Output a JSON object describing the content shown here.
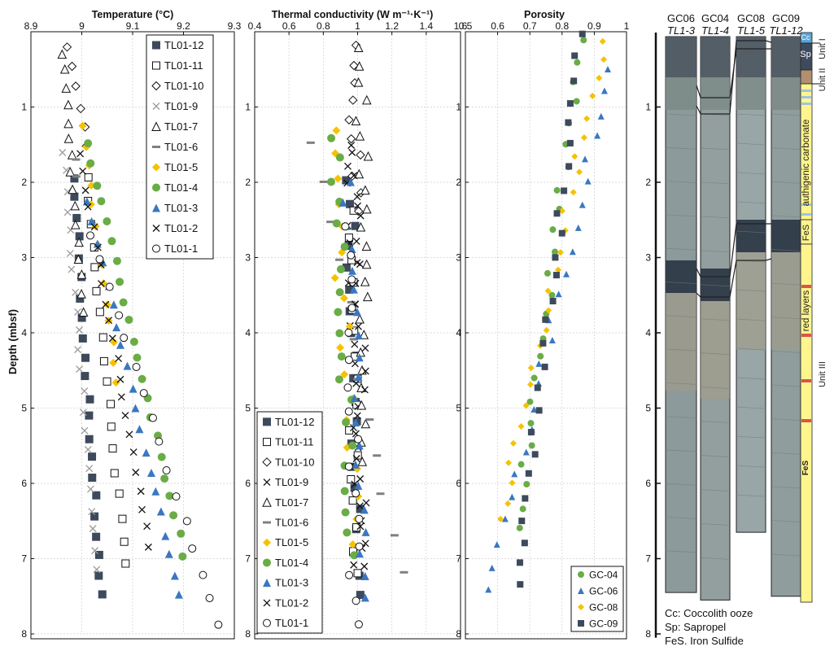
{
  "y_axis": {
    "label": "Depth (mbsf)",
    "range": [
      0,
      8
    ],
    "ticks": [
      1,
      2,
      3,
      4,
      5,
      6,
      7,
      8
    ]
  },
  "panels": [
    {
      "id": "temperature",
      "title": "Temperature (°C)",
      "xlim": [
        8.9,
        9.3
      ],
      "ticks": [
        8.9,
        9,
        9.1,
        9.2,
        9.3
      ],
      "legend_position": "top-right",
      "series": [
        {
          "name": "TL01-12",
          "marker": "square-filled",
          "color": "#3d4a5c",
          "x0": 8.985,
          "dx": 0.052,
          "d0": 1.95,
          "dd": 5.55,
          "n": 22
        },
        {
          "name": "TL01-11",
          "marker": "square-open",
          "color": "#111111",
          "x0": 9.01,
          "dx": 0.075,
          "d0": 1.95,
          "dd": 5.1,
          "n": 18
        },
        {
          "name": "TL01-10",
          "marker": "diamond-open",
          "color": "#111111",
          "x0": 8.975,
          "dx": 0.035,
          "d0": 0.2,
          "dd": 1.35,
          "n": 6
        },
        {
          "name": "TL01-9",
          "marker": "x-gray",
          "color": "#9a9a9a",
          "x0": 8.9625,
          "dx": 0.07,
          "d0": 1.6,
          "dd": 5.55,
          "n": 22
        },
        {
          "name": "TL01-7",
          "marker": "triangle-open",
          "color": "#111111",
          "x0": 8.962,
          "dx": 0.04,
          "d0": 0.3,
          "dd": 3.4,
          "n": 16
        },
        {
          "name": "TL01-6",
          "marker": "dash-gray",
          "color": "#808080",
          "x0": 8.985,
          "dx": 0.005,
          "d0": 1.7,
          "dd": 0.2,
          "n": 2
        },
        {
          "name": "TL01-5",
          "marker": "diamond-filled",
          "color": "#f5c200",
          "x0": 9.0,
          "dx": 0.07,
          "d0": 1.25,
          "dd": 3.4,
          "n": 14
        },
        {
          "name": "TL01-4",
          "marker": "circle-filled",
          "color": "#6aac46",
          "x0": 9.012,
          "dx": 0.19,
          "d0": 1.5,
          "dd": 5.45,
          "n": 22
        },
        {
          "name": "TL01-3",
          "marker": "triangle-filled",
          "color": "#3a77c0",
          "x0": 9.012,
          "dx": 0.18,
          "d0": 2.25,
          "dd": 5.25,
          "n": 20
        },
        {
          "name": "TL01-2",
          "marker": "x-black",
          "color": "#111111",
          "x0": 8.995,
          "dx": 0.14,
          "d0": 1.6,
          "dd": 5.25,
          "n": 22
        },
        {
          "name": "TL01-1",
          "marker": "circle-open",
          "color": "#111111",
          "x0": 9.02,
          "dx": 0.25,
          "d0": 2.7,
          "dd": 5.2,
          "n": 16
        }
      ]
    },
    {
      "id": "conductivity",
      "title": "Thermal conductivity (W m⁻¹·K⁻¹)",
      "xlim": [
        0.4,
        1.6
      ],
      "ticks": [
        0.4,
        0.6,
        0.8,
        1,
        1.2,
        1.4,
        1.6
      ],
      "legend_position": "bottom-left",
      "series": [
        {
          "name": "TL01-12",
          "marker": "square-filled",
          "color": "#3d4a5c",
          "x0": 0.95,
          "dx": 0.05,
          "d0": 2.0,
          "dd": 5.5,
          "n": 20
        },
        {
          "name": "TL01-11",
          "marker": "square-open",
          "color": "#111111",
          "x0": 0.98,
          "dx": 0.0,
          "d0": 2.4,
          "dd": 4.8,
          "n": 16
        },
        {
          "name": "TL01-10",
          "marker": "diamond-open",
          "color": "#111111",
          "x0": 0.97,
          "dx": 0.02,
          "d0": 0.2,
          "dd": 2.2,
          "n": 10
        },
        {
          "name": "TL01-9",
          "marker": "x-black",
          "color": "#111111",
          "x0": 0.97,
          "dx": 0.03,
          "d0": 1.5,
          "dd": 5.6,
          "n": 22
        },
        {
          "name": "TL01-7",
          "marker": "triangle-open",
          "color": "#111111",
          "x0": 1.02,
          "dx": 0.03,
          "d0": 0.2,
          "dd": 5.5,
          "n": 24
        },
        {
          "name": "TL01-6",
          "marker": "dash-gray",
          "color": "#808080",
          "x0": 0.75,
          "dx": 0.5,
          "d0": 1.5,
          "dd": 5.7,
          "n": 12
        },
        {
          "name": "TL01-5",
          "marker": "diamond-filled",
          "color": "#f5c200",
          "x0": 0.85,
          "dx": 0.15,
          "d0": 1.3,
          "dd": 5.5,
          "n": 18
        },
        {
          "name": "TL01-4",
          "marker": "circle-filled",
          "color": "#6aac46",
          "x0": 0.87,
          "dx": 0.1,
          "d0": 1.4,
          "dd": 5.55,
          "n": 20
        },
        {
          "name": "TL01-3",
          "marker": "triangle-filled",
          "color": "#3a77c0",
          "x0": 0.93,
          "dx": 0.12,
          "d0": 2.0,
          "dd": 5.5,
          "n": 20
        },
        {
          "name": "TL01-2",
          "marker": "x-black",
          "color": "#111111",
          "x0": 0.99,
          "dx": 0.05,
          "d0": 1.6,
          "dd": 5.5,
          "n": 20
        },
        {
          "name": "TL01-1",
          "marker": "circle-open",
          "color": "#111111",
          "x0": 0.96,
          "dx": 0.02,
          "d0": 2.6,
          "dd": 5.3,
          "n": 16
        }
      ]
    },
    {
      "id": "porosity",
      "title": "Porosity",
      "xlim": [
        0.5,
        1.0
      ],
      "ticks": [
        0.5,
        0.6,
        0.7,
        0.8,
        0.9,
        1
      ],
      "legend_position": "bottom-right",
      "series": [
        {
          "name": "GC-04",
          "marker": "circle-filled",
          "color": "#6aac46",
          "x0": 0.86,
          "dx": -0.2,
          "d0": 0.1,
          "dd": 6.5,
          "n": 24
        },
        {
          "name": "GC-06",
          "marker": "triangle-filled",
          "color": "#3a77c0",
          "x0": 0.95,
          "dx": -0.37,
          "d0": 0.5,
          "dd": 6.9,
          "n": 24
        },
        {
          "name": "GC-08",
          "marker": "diamond-filled",
          "color": "#f5c200",
          "x0": 0.93,
          "dx": -0.32,
          "d0": 0.1,
          "dd": 6.4,
          "n": 26
        },
        {
          "name": "GC-09",
          "marker": "square-filled",
          "color": "#3d4a5c",
          "x0": 0.86,
          "dx": -0.2,
          "d0": 0.05,
          "dd": 7.3,
          "n": 26
        }
      ]
    }
  ],
  "cores": {
    "top_labels": [
      "GC06",
      "GC04",
      "GC08",
      "GC09"
    ],
    "sub_labels": [
      "TL1-3",
      "TL1-4",
      "TL1-5",
      "TL1-12"
    ],
    "bottoms": [
      7.45,
      7.55,
      6.65,
      7.5
    ],
    "units": {
      "unit_i": "Unit I",
      "unit_ii": "Unit II",
      "unit_iii": "Unit III"
    },
    "strat_labels": {
      "cc": "Cc",
      "sp": "Sp",
      "authigenic": "authigenic carbonate",
      "fes": "FeS",
      "red": "red layers",
      "fes2": "FeS"
    },
    "key": [
      "Cc: Coccolith ooze",
      "Sp: Sapropel",
      "FeS. Iron Sulfide"
    ]
  },
  "colors": {
    "square": "#3d4a5c",
    "green": "#6aac46",
    "blue": "#3a77c0",
    "yellow": "#f5c200",
    "yellow_strat": "#fff58c",
    "red": "#d9554a",
    "sapropel": "#3e4b5e",
    "cc": "#5ba4d8",
    "tan": "#b09070"
  }
}
